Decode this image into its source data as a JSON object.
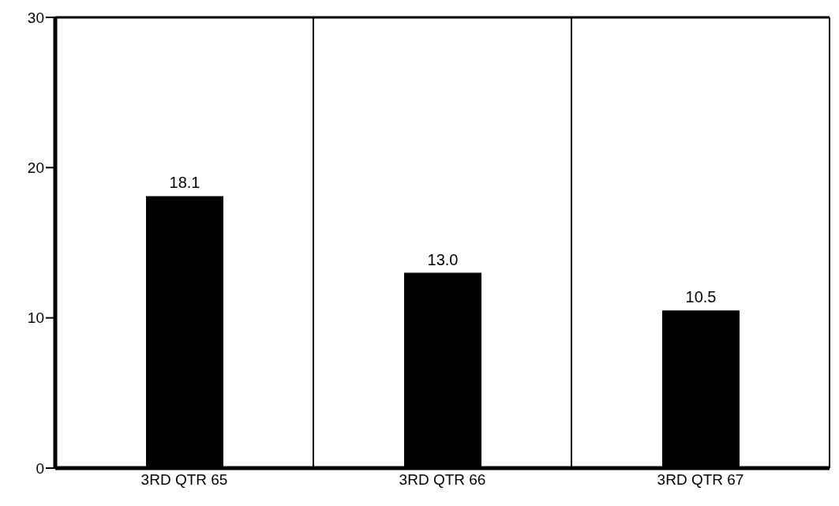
{
  "chart_data": {
    "type": "bar",
    "categories": [
      "3RD QTR 65",
      "3RD QTR 66",
      "3RD QTR 67"
    ],
    "values": [
      18.1,
      13.0,
      10.5
    ],
    "value_labels": [
      "18.1",
      "13.0",
      "10.5"
    ],
    "color": "#000000",
    "ylim": [
      0,
      30
    ],
    "yticks": [
      0,
      10,
      20,
      30
    ],
    "grid": "x"
  }
}
